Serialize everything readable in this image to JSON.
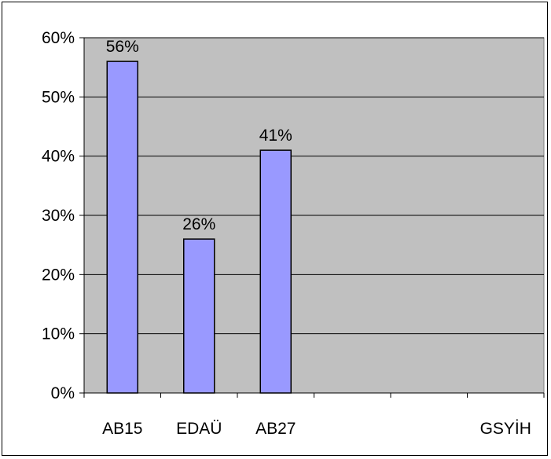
{
  "chart_data": {
    "type": "bar",
    "categories": [
      "AB15",
      "EDAÜ",
      "AB27",
      "",
      "",
      "GSYİH"
    ],
    "values": [
      56,
      26,
      41,
      null,
      null,
      null
    ],
    "value_labels": [
      "56%",
      "26%",
      "41%",
      "",
      "",
      ""
    ],
    "y_tick_labels": [
      "0%",
      "10%",
      "20%",
      "30%",
      "40%",
      "50%",
      "60%"
    ],
    "ylim": [
      0,
      60
    ],
    "y_unit": "%",
    "grid": true,
    "plot_background": "#C0C0C0",
    "bar_color": "#9999FF",
    "bar_edge_color": "#000000",
    "legend": "none"
  }
}
